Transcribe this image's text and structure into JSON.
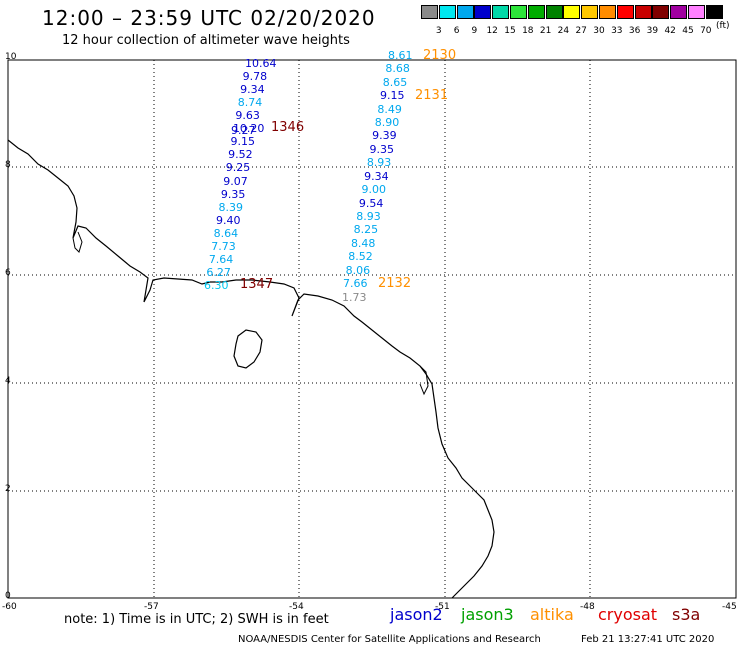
{
  "header": {
    "title": "12:00 – 23:59 UTC 02/20/2020",
    "subtitle": "12 hour collection of altimeter wave heights"
  },
  "legend": {
    "unit": "(ft)",
    "labels": [
      "3",
      "6",
      "9",
      "12",
      "15",
      "18",
      "21",
      "24",
      "27",
      "30",
      "33",
      "36",
      "39",
      "42",
      "45",
      "70"
    ],
    "colors": [
      "#8a8a8a",
      "#00e8f0",
      "#00a8ee",
      "#0000cc",
      "#00d8a8",
      "#2de53a",
      "#00ac00",
      "#008200",
      "#ffff00",
      "#ffc800",
      "#ff8c00",
      "#ff0000",
      "#c80000",
      "#800000",
      "#a000a0",
      "#ff80ff",
      "#000000"
    ]
  },
  "axes": {
    "y_ticks": [
      "10",
      "8",
      "6",
      "4",
      "2",
      "0"
    ],
    "x_ticks": [
      "-60",
      "-57",
      "-54",
      "-51",
      "-48",
      "-45"
    ]
  },
  "track_west": [
    {
      "v": "10.64",
      "c": "#0000cc"
    },
    {
      "v": "9.78",
      "c": "#0000cc"
    },
    {
      "v": "9.34",
      "c": "#0000cc"
    },
    {
      "v": "8.74",
      "c": "#00a8ee"
    },
    {
      "v": "9.63",
      "c": "#0000cc"
    },
    {
      "v": "10.20",
      "c": "#0000cc"
    },
    {
      "v": "9.15",
      "c": "#0000cc"
    },
    {
      "v": "9.52",
      "c": "#0000cc"
    },
    {
      "v": "9.25",
      "c": "#0000cc"
    },
    {
      "v": "9.07",
      "c": "#0000cc"
    },
    {
      "v": "9.35",
      "c": "#0000cc"
    },
    {
      "v": "8.39",
      "c": "#00a8ee"
    },
    {
      "v": "9.40",
      "c": "#0000cc"
    },
    {
      "v": "8.64",
      "c": "#00a8ee"
    },
    {
      "v": "7.73",
      "c": "#00a8ee"
    },
    {
      "v": "7.64",
      "c": "#00a8ee"
    },
    {
      "v": "6.27",
      "c": "#00a8ee"
    },
    {
      "v": "6.30",
      "c": "#00c8f0"
    }
  ],
  "track_west_overlap": {
    "v": "9.27",
    "c": "#0000cc"
  },
  "track_east": [
    {
      "v": "8.61",
      "c": "#00a8ee"
    },
    {
      "v": "8.68",
      "c": "#00a8ee"
    },
    {
      "v": "8.65",
      "c": "#00a8ee"
    },
    {
      "v": "9.15",
      "c": "#0000cc"
    },
    {
      "v": "8.49",
      "c": "#00a8ee"
    },
    {
      "v": "8.90",
      "c": "#00a8ee"
    },
    {
      "v": "9.39",
      "c": "#0000cc"
    },
    {
      "v": "9.35",
      "c": "#0000cc"
    },
    {
      "v": "8.93",
      "c": "#00a8ee"
    },
    {
      "v": "9.34",
      "c": "#0000cc"
    },
    {
      "v": "9.00",
      "c": "#00a8ee"
    },
    {
      "v": "9.54",
      "c": "#0000cc"
    },
    {
      "v": "8.93",
      "c": "#00a8ee"
    },
    {
      "v": "8.25",
      "c": "#00a8ee"
    },
    {
      "v": "8.48",
      "c": "#00a8ee"
    },
    {
      "v": "8.52",
      "c": "#00a8ee"
    },
    {
      "v": "8.06",
      "c": "#00a8ee"
    },
    {
      "v": "7.66",
      "c": "#00a8ee"
    }
  ],
  "extra_value": {
    "v": "1.73",
    "c": "#8a8a8a"
  },
  "time_labels": {
    "t2130": "2130",
    "t2131": "2131",
    "t2132": "2132",
    "t1346": "1346",
    "t1347": "1347"
  },
  "footer": {
    "note": "note:  1) Time is in UTC;  2) SWH is in feet",
    "missions": [
      {
        "name": "jason2",
        "color": "#0000cc"
      },
      {
        "name": "jason3",
        "color": "#00a000"
      },
      {
        "name": "altika",
        "color": "#ff9000"
      },
      {
        "name": "cryosat",
        "color": "#e00000"
      },
      {
        "name": "s3a",
        "color": "#800000"
      }
    ],
    "credit": "NOAA/NESDIS Center for Satellite Applications and Research",
    "stamp": "Feb 21 13:27:41 UTC 2020"
  }
}
